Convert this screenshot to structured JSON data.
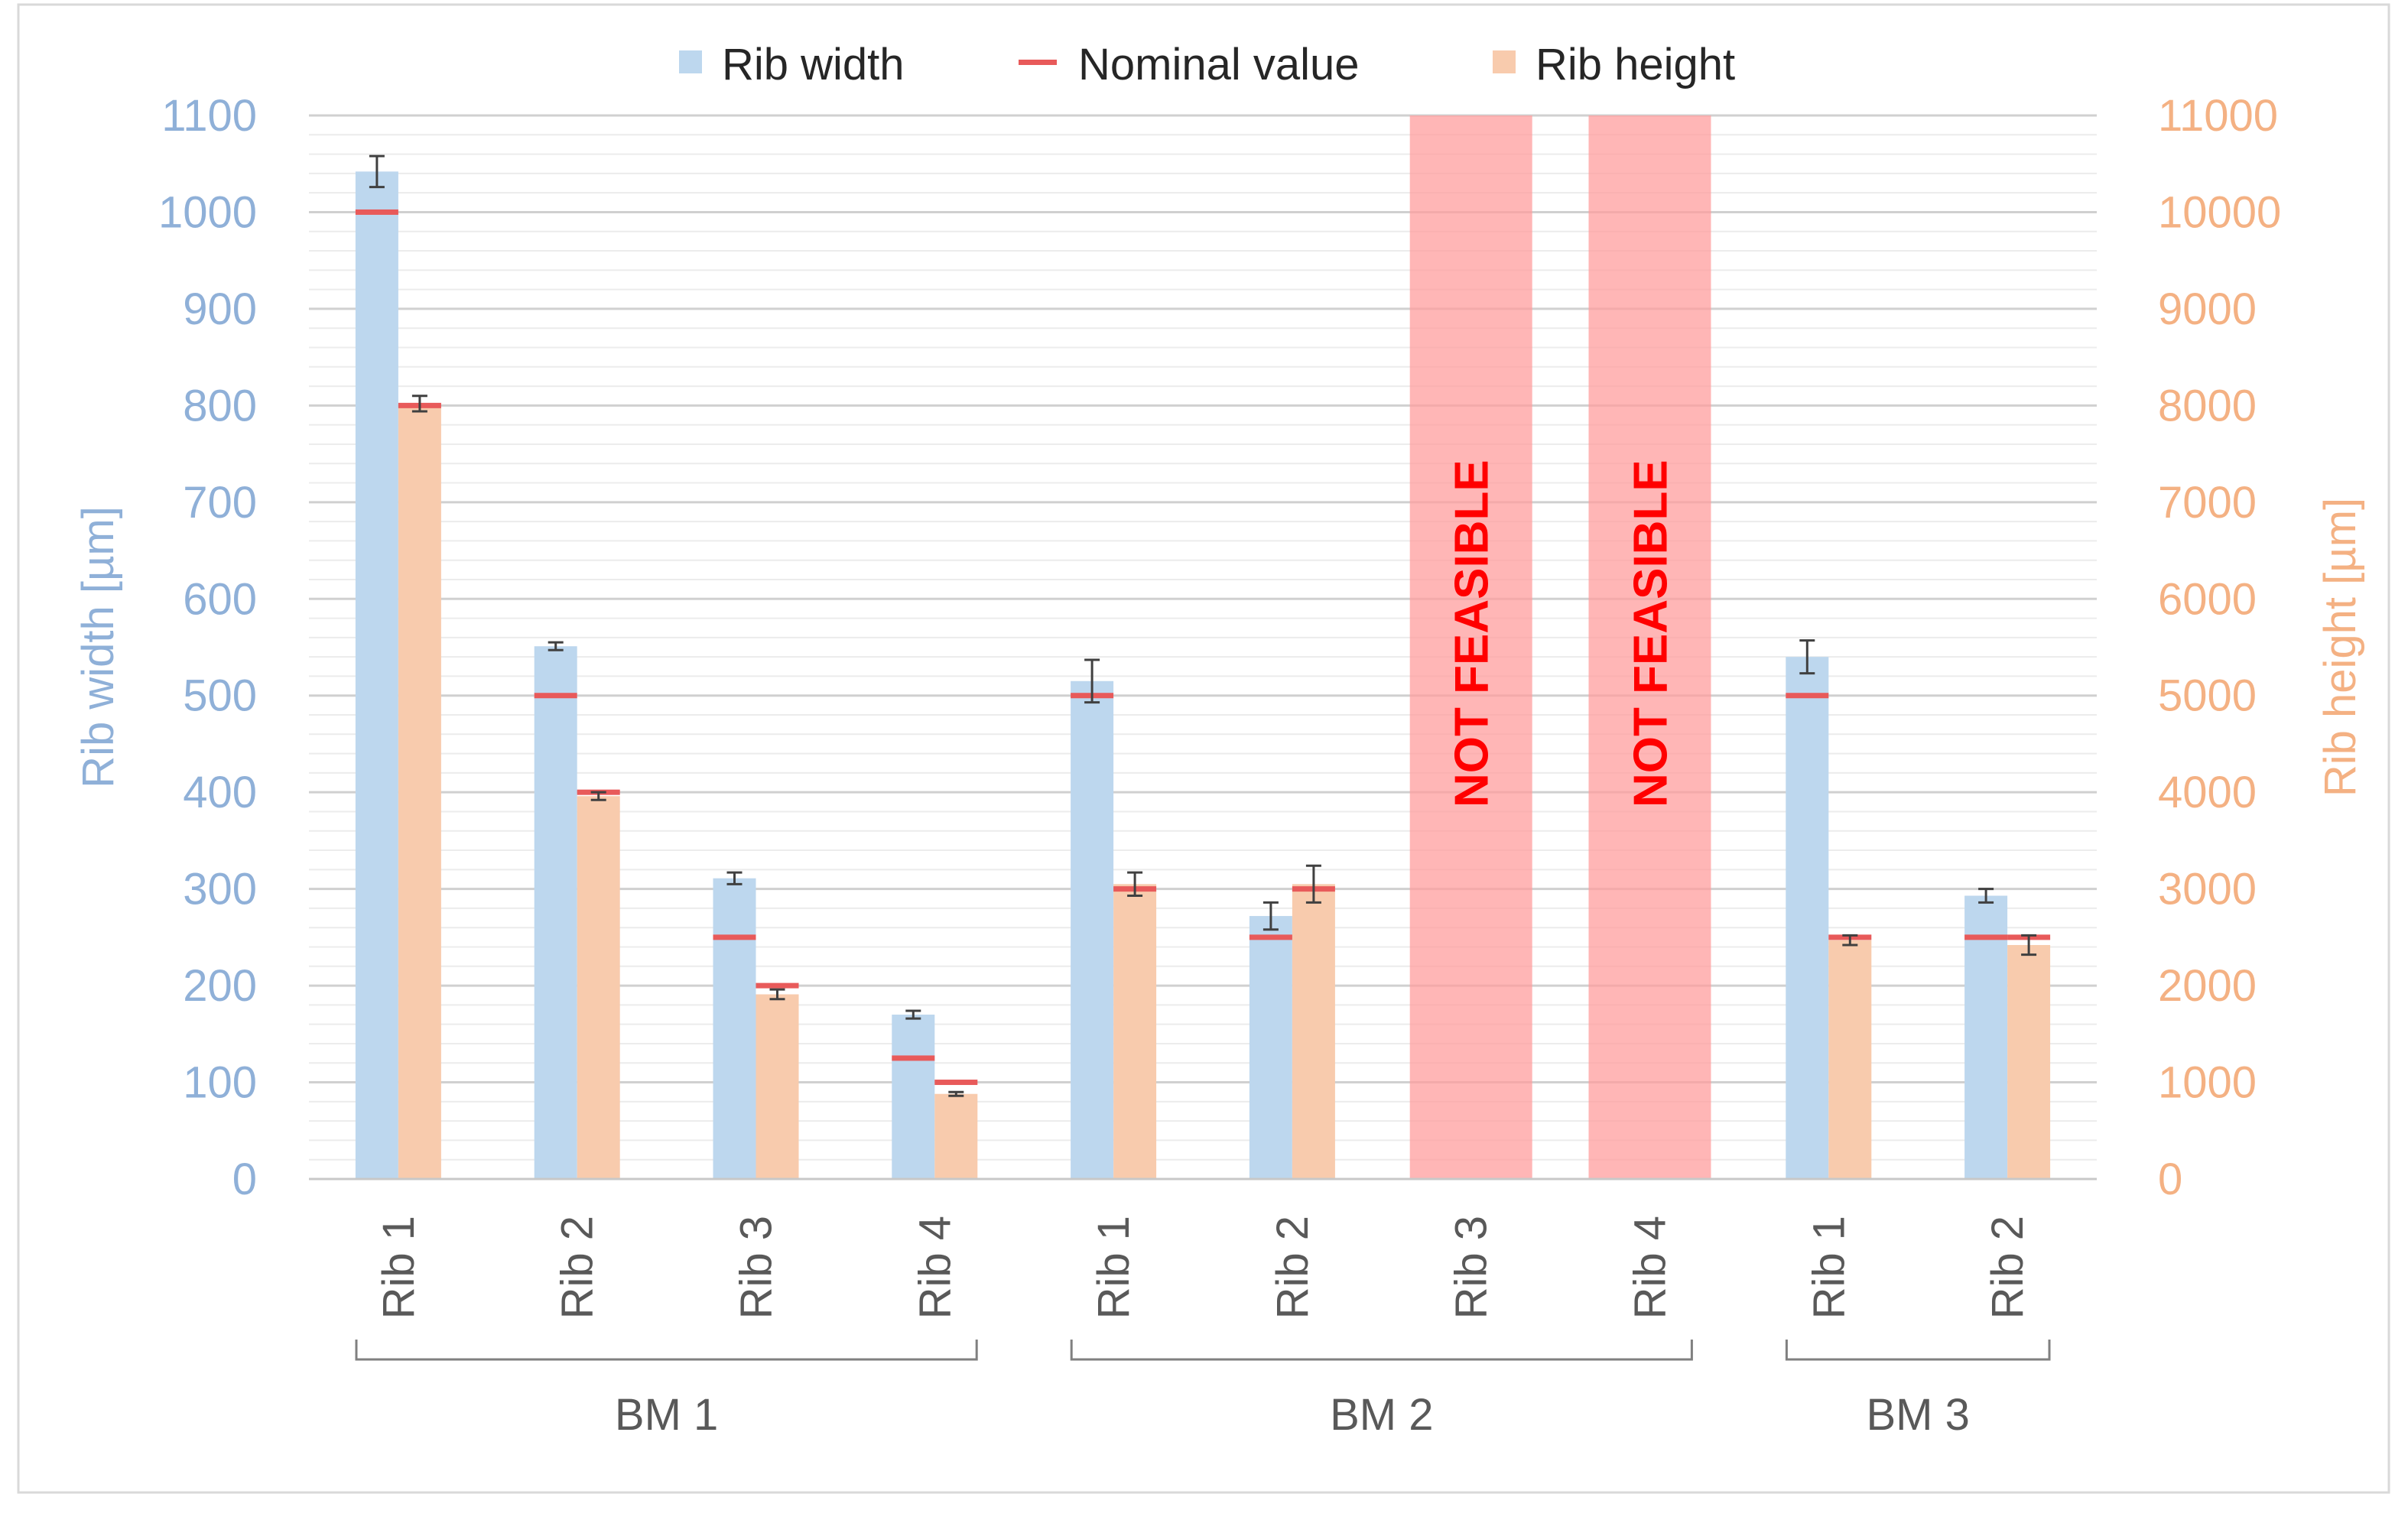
{
  "chart_data": {
    "type": "bar",
    "title": "",
    "legend": {
      "position": "top",
      "entries": [
        "Rib width",
        "Nominal value",
        "Rib height"
      ]
    },
    "left_axis": {
      "label": "Rib width [µm]",
      "range": [
        0,
        1100
      ],
      "ticks": [
        "0",
        "100",
        "200",
        "300",
        "400",
        "500",
        "600",
        "700",
        "800",
        "900",
        "1000",
        "1100"
      ],
      "tick_values": [
        0,
        100,
        200,
        300,
        400,
        500,
        600,
        700,
        800,
        900,
        1000,
        1100
      ],
      "color": "#8fb0d8"
    },
    "right_axis": {
      "label": "Rib height [µm]",
      "range": [
        0,
        11000
      ],
      "ticks": [
        "0",
        "1000",
        "2000",
        "3000",
        "4000",
        "5000",
        "6000",
        "7000",
        "8000",
        "9000",
        "10000",
        "11000"
      ],
      "tick_values": [
        0,
        1000,
        2000,
        3000,
        4000,
        5000,
        6000,
        7000,
        8000,
        9000,
        10000,
        11000
      ],
      "color": "#f4b183"
    },
    "categories": [
      "Rib 1",
      "Rib 2",
      "Rib 3",
      "Rib 4",
      "Rib 1",
      "Rib 2",
      "Rib 3",
      "Rib 4",
      "Rib 1",
      "Rib 2"
    ],
    "groups": [
      {
        "label": "BM 1",
        "start": 0,
        "end": 3
      },
      {
        "label": "BM 2",
        "start": 4,
        "end": 7
      },
      {
        "label": "BM 3",
        "start": 8,
        "end": 9
      }
    ],
    "series": [
      {
        "name": "Rib width",
        "axis": "left",
        "color": "#bdd7ee",
        "values": [
          1042,
          551,
          311,
          170,
          515,
          272,
          null,
          null,
          540,
          293
        ],
        "errors": [
          16,
          4,
          6,
          4,
          22,
          14,
          null,
          null,
          17,
          7
        ]
      },
      {
        "name": "Rib height",
        "axis": "right",
        "color": "#f8cbad",
        "values": [
          8020,
          3960,
          1910,
          880,
          3050,
          3050,
          null,
          null,
          2470,
          2420
        ],
        "errors": [
          80,
          40,
          50,
          20,
          120,
          190,
          null,
          null,
          50,
          100
        ]
      }
    ],
    "nominal": {
      "name": "Nominal value",
      "color": "#e85a5a",
      "width_values": [
        1000,
        500,
        250,
        125,
        500,
        250,
        null,
        null,
        500,
        250
      ],
      "height_values": [
        8000,
        4000,
        2000,
        1000,
        3000,
        3000,
        null,
        null,
        2500,
        2500
      ]
    },
    "not_feasible": {
      "indices": [
        6,
        7
      ],
      "label": "NOT FEASIBLE",
      "color": "#ff9d9d"
    }
  }
}
